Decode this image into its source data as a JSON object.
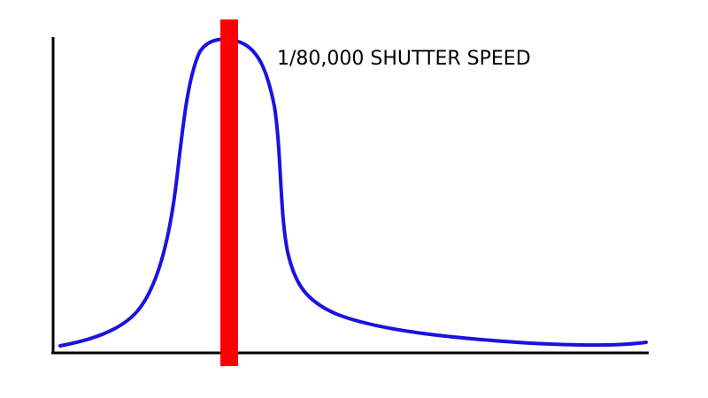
{
  "annotation": "1/80,000 SHUTTER SPEED"
}
